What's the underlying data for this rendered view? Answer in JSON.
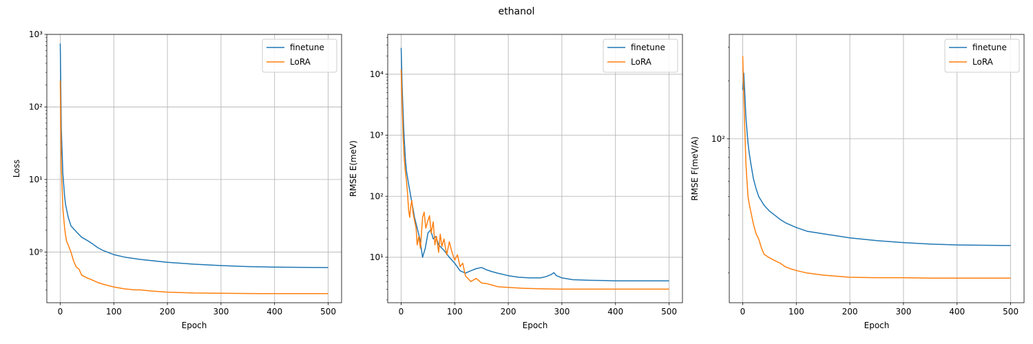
{
  "figure_title": "ethanol",
  "colors": {
    "finetune": "#1f77b4",
    "lora": "#ff7f0e",
    "grid": "#b0b0b0"
  },
  "chart_data": [
    {
      "type": "line",
      "xlabel": "Epoch",
      "ylabel": "Loss",
      "yscale": "log",
      "xlim": [
        -25,
        525
      ],
      "ylim": [
        0.2,
        1000
      ],
      "xticks": [
        0,
        100,
        200,
        300,
        400,
        500
      ],
      "yticks": [
        1,
        10,
        100,
        1000
      ],
      "ytick_labels": [
        "10⁰",
        "10¹",
        "10²",
        "10³"
      ],
      "grid": true,
      "legend": "top-right",
      "series": [
        {
          "name": "finetune",
          "color": "#1f77b4",
          "x": [
            0,
            2,
            5,
            8,
            10,
            15,
            20,
            30,
            40,
            50,
            60,
            70,
            80,
            100,
            120,
            150,
            200,
            250,
            300,
            350,
            400,
            450,
            500
          ],
          "y": [
            750,
            50,
            12,
            6,
            4.5,
            3,
            2.3,
            1.9,
            1.6,
            1.45,
            1.3,
            1.15,
            1.05,
            0.92,
            0.85,
            0.79,
            0.72,
            0.68,
            0.65,
            0.63,
            0.62,
            0.615,
            0.61
          ]
        },
        {
          "name": "LoRA",
          "color": "#ff7f0e",
          "x": [
            0,
            2,
            5,
            8,
            10,
            12,
            15,
            20,
            25,
            30,
            35,
            40,
            50,
            60,
            70,
            80,
            100,
            120,
            140,
            150,
            170,
            200,
            250,
            300,
            350,
            400,
            450,
            500
          ],
          "y": [
            230,
            15,
            4,
            2.2,
            1.7,
            1.4,
            1.25,
            1.0,
            0.75,
            0.62,
            0.58,
            0.48,
            0.44,
            0.41,
            0.38,
            0.36,
            0.33,
            0.31,
            0.3,
            0.3,
            0.29,
            0.28,
            0.272,
            0.27,
            0.268,
            0.267,
            0.267,
            0.267
          ]
        }
      ]
    },
    {
      "type": "line",
      "xlabel": "Epoch",
      "ylabel": "RMSE E(meV)",
      "yscale": "log",
      "xlim": [
        -25,
        525
      ],
      "ylim": [
        1.8,
        45000
      ],
      "xticks": [
        0,
        100,
        200,
        300,
        400,
        500
      ],
      "yticks": [
        10,
        100,
        1000,
        10000
      ],
      "ytick_labels": [
        "10¹",
        "10²",
        "10³",
        "10⁴"
      ],
      "grid": true,
      "legend": "top-right",
      "series": [
        {
          "name": "finetune",
          "color": "#1f77b4",
          "x": [
            0,
            2,
            5,
            8,
            10,
            15,
            20,
            25,
            30,
            35,
            40,
            45,
            50,
            55,
            60,
            65,
            70,
            80,
            90,
            100,
            110,
            120,
            130,
            140,
            150,
            160,
            170,
            180,
            200,
            220,
            240,
            260,
            270,
            280,
            285,
            290,
            300,
            320,
            350,
            380,
            400,
            450,
            500
          ],
          "y": [
            27000,
            6000,
            1200,
            400,
            260,
            140,
            80,
            45,
            30,
            20,
            10,
            14,
            25,
            28,
            20,
            22,
            16,
            13,
            10,
            8,
            6,
            5.5,
            6,
            6.5,
            6.8,
            6.2,
            5.8,
            5.5,
            5.0,
            4.7,
            4.6,
            4.6,
            4.8,
            5.2,
            5.6,
            5.0,
            4.6,
            4.3,
            4.2,
            4.15,
            4.1,
            4.1,
            4.1
          ]
        },
        {
          "name": "LoRA",
          "color": "#ff7f0e",
          "x": [
            0,
            2,
            4,
            6,
            8,
            10,
            12,
            14,
            16,
            18,
            20,
            22,
            25,
            28,
            30,
            33,
            36,
            40,
            43,
            46,
            50,
            53,
            56,
            60,
            63,
            66,
            70,
            73,
            76,
            80,
            85,
            90,
            95,
            100,
            105,
            110,
            115,
            120,
            130,
            140,
            150,
            160,
            170,
            180,
            200,
            230,
            260,
            300,
            350,
            400,
            450,
            500
          ],
          "y": [
            12000,
            3000,
            800,
            400,
            250,
            180,
            110,
            60,
            45,
            70,
            85,
            55,
            40,
            30,
            16,
            22,
            14,
            45,
            55,
            30,
            40,
            48,
            25,
            38,
            16,
            22,
            12,
            24,
            15,
            20,
            11,
            18,
            12,
            9,
            11,
            7,
            8,
            5,
            4,
            4.5,
            3.8,
            3.7,
            3.5,
            3.3,
            3.2,
            3.1,
            3.05,
            3.0,
            3.0,
            3.0,
            3.0,
            3.0
          ]
        }
      ]
    },
    {
      "type": "line",
      "xlabel": "Epoch",
      "ylabel": "RMSE F(meV/A)",
      "yscale": "log",
      "xlim": [
        -25,
        525
      ],
      "ylim": [
        14,
        350
      ],
      "xticks": [
        0,
        100,
        200,
        300,
        400,
        500
      ],
      "yticks": [
        100
      ],
      "ytick_labels": [
        "10²"
      ],
      "grid": true,
      "legend": "top-right",
      "series": [
        {
          "name": "finetune",
          "color": "#1f77b4",
          "x": [
            0,
            2,
            4,
            6,
            8,
            10,
            12,
            15,
            20,
            25,
            30,
            40,
            50,
            60,
            70,
            80,
            90,
            100,
            120,
            150,
            200,
            250,
            300,
            350,
            400,
            450,
            500
          ],
          "y": [
            180,
            220,
            170,
            130,
            110,
            95,
            85,
            75,
            62,
            55,
            50,
            45,
            42,
            40,
            38,
            36.5,
            35.5,
            34.5,
            33,
            32,
            30.5,
            29.5,
            28.8,
            28.3,
            28.0,
            27.9,
            27.8
          ]
        },
        {
          "name": "LoRA",
          "color": "#ff7f0e",
          "x": [
            0,
            2,
            4,
            6,
            8,
            10,
            12,
            15,
            20,
            25,
            30,
            35,
            40,
            50,
            60,
            70,
            80,
            90,
            100,
            120,
            150,
            200,
            250,
            300,
            350,
            400,
            450,
            500
          ],
          "y": [
            270,
            170,
            110,
            75,
            60,
            50,
            46,
            42,
            36,
            32,
            30,
            27,
            25,
            24,
            23.2,
            22.5,
            21.5,
            21.0,
            20.6,
            20.0,
            19.5,
            19.0,
            18.9,
            18.9,
            18.8,
            18.8,
            18.8,
            18.8
          ]
        }
      ]
    }
  ]
}
